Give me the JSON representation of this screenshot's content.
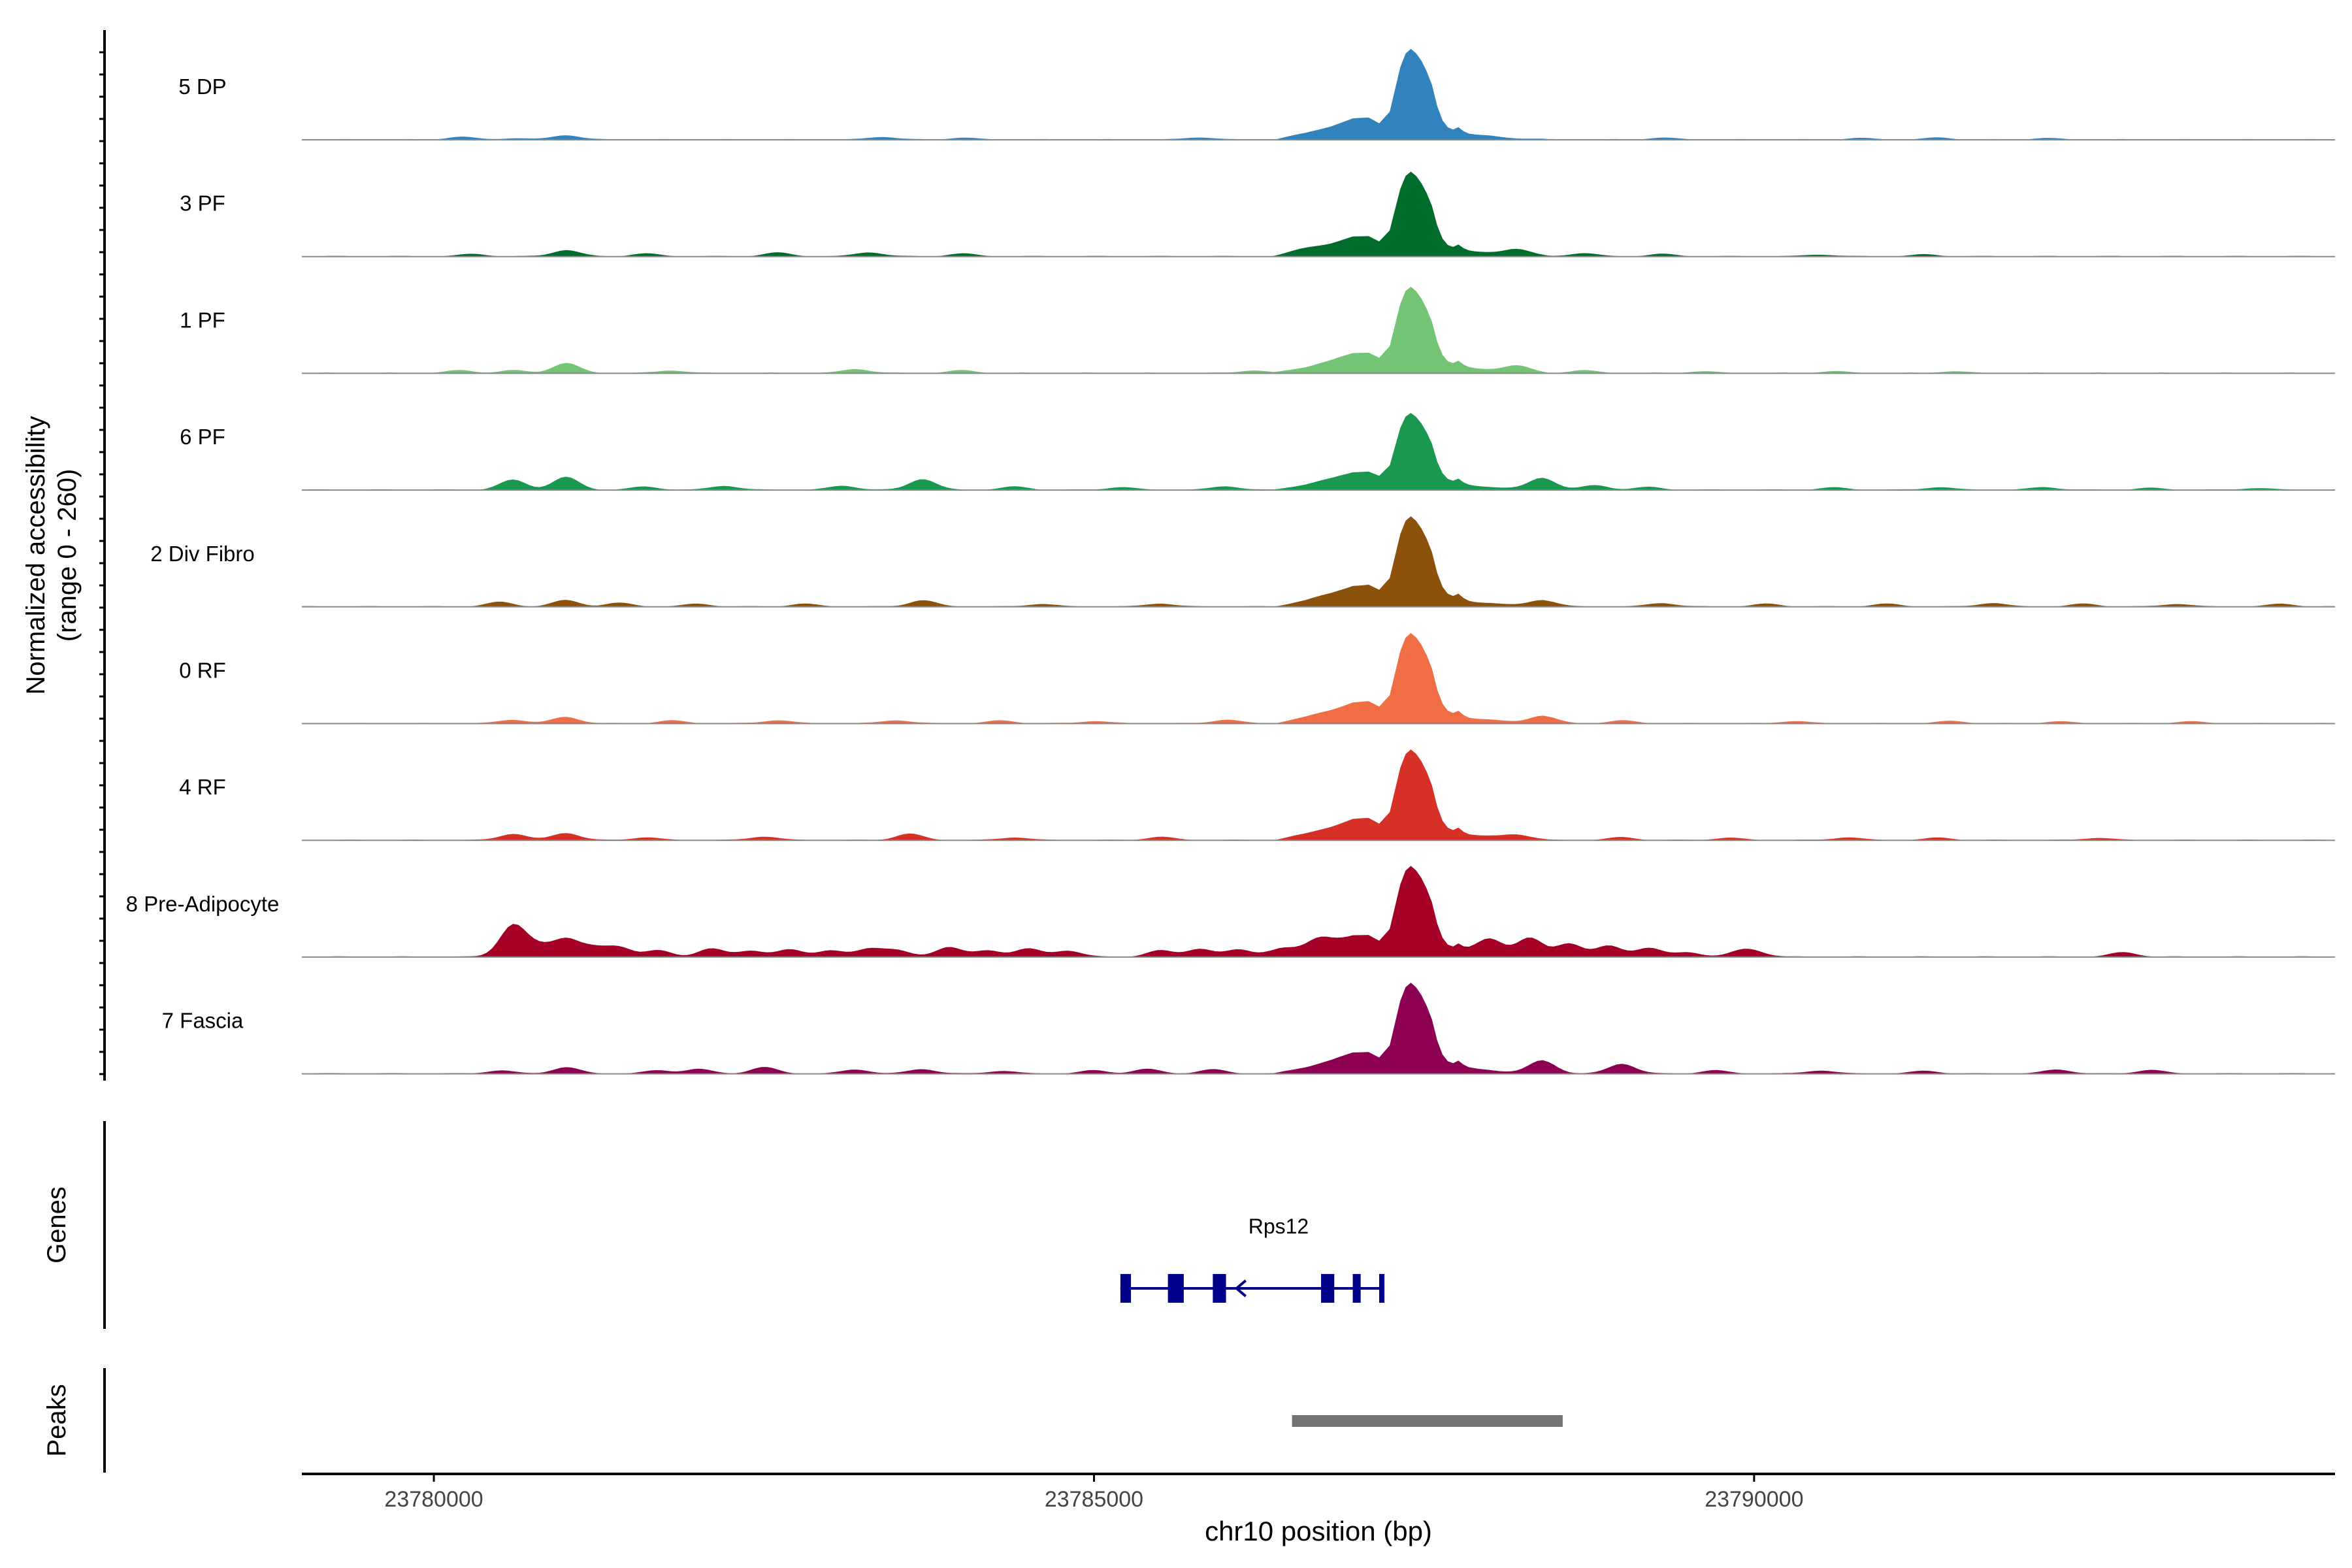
{
  "chart_data": {
    "type": "area",
    "chromosome": "chr10",
    "xlabel": "chr10 position (bp)",
    "ylabel_line1": "Normalized accessibility",
    "ylabel_line2": "(range 0 - 260)",
    "ylim": [
      0,
      260
    ],
    "xlim": [
      23779000,
      23794400
    ],
    "x_ticks": [
      23780000,
      23785000,
      23790000
    ],
    "x_tick_labels": [
      "23780000",
      "23785000",
      "23790000"
    ],
    "track_labels": {
      "genes": "Genes",
      "peaks": "Peaks"
    },
    "series": [
      {
        "name": "5 DP",
        "color": "#3182bd",
        "amp": 1.0,
        "bg": [
          [
            23780200,
            6
          ],
          [
            23780600,
            3
          ],
          [
            23781000,
            10
          ],
          [
            23783400,
            6
          ],
          [
            23784000,
            4
          ],
          [
            23785800,
            5
          ],
          [
            23789300,
            4
          ],
          [
            23790800,
            3
          ],
          [
            23791400,
            4
          ],
          [
            23792200,
            3
          ]
        ]
      },
      {
        "name": "3 PF",
        "color": "#006d2c",
        "amp": 0.93,
        "bg": [
          [
            23780300,
            5
          ],
          [
            23781000,
            14
          ],
          [
            23781600,
            6
          ],
          [
            23782600,
            8
          ],
          [
            23783300,
            9
          ],
          [
            23784000,
            6
          ],
          [
            23786600,
            6
          ],
          [
            23788200,
            14
          ],
          [
            23788700,
            7
          ],
          [
            23789300,
            5
          ],
          [
            23790500,
            4
          ],
          [
            23791300,
            4
          ]
        ]
      },
      {
        "name": "1 PF",
        "color": "#74c476",
        "amp": 0.95,
        "bg": [
          [
            23780200,
            6
          ],
          [
            23780600,
            6
          ],
          [
            23781000,
            22
          ],
          [
            23781800,
            6
          ],
          [
            23783200,
            9
          ],
          [
            23784000,
            6
          ],
          [
            23786200,
            6
          ],
          [
            23788200,
            14
          ],
          [
            23788700,
            6
          ],
          [
            23789600,
            4
          ],
          [
            23790600,
            4
          ],
          [
            23791500,
            4
          ]
        ]
      },
      {
        "name": "6 PF",
        "color": "#1a9850",
        "amp": 0.85,
        "bg": [
          [
            23780600,
            22
          ],
          [
            23781000,
            28
          ],
          [
            23781600,
            7
          ],
          [
            23782200,
            9
          ],
          [
            23783100,
            9
          ],
          [
            23783700,
            24
          ],
          [
            23784400,
            7
          ],
          [
            23785200,
            6
          ],
          [
            23786000,
            8
          ],
          [
            23788400,
            26
          ],
          [
            23788800,
            10
          ],
          [
            23789200,
            6
          ],
          [
            23790600,
            5
          ],
          [
            23791400,
            6
          ],
          [
            23792200,
            6
          ],
          [
            23793000,
            4
          ],
          [
            23793800,
            4
          ]
        ]
      },
      {
        "name": "2 Div Fibro",
        "color": "#8c510a",
        "amp": 1.0,
        "bg": [
          [
            23780500,
            10
          ],
          [
            23781000,
            14
          ],
          [
            23781400,
            8
          ],
          [
            23782000,
            6
          ],
          [
            23782800,
            6
          ],
          [
            23783700,
            14
          ],
          [
            23784600,
            6
          ],
          [
            23785500,
            7
          ],
          [
            23788400,
            14
          ],
          [
            23789300,
            8
          ],
          [
            23790100,
            6
          ],
          [
            23791000,
            6
          ],
          [
            23791800,
            8
          ],
          [
            23792500,
            6
          ],
          [
            23793200,
            6
          ],
          [
            23794000,
            6
          ]
        ]
      },
      {
        "name": "0 RF",
        "color": "#f16d43",
        "amp": 1.0,
        "bg": [
          [
            23780600,
            8
          ],
          [
            23781000,
            14
          ],
          [
            23781800,
            6
          ],
          [
            23782600,
            7
          ],
          [
            23783500,
            7
          ],
          [
            23784300,
            6
          ],
          [
            23785000,
            5
          ],
          [
            23786000,
            8
          ],
          [
            23788400,
            16
          ],
          [
            23789000,
            6
          ],
          [
            23790300,
            5
          ],
          [
            23791500,
            5
          ],
          [
            23792300,
            4
          ],
          [
            23793300,
            4
          ]
        ]
      },
      {
        "name": "4 RF",
        "color": "#d73027",
        "amp": 1.0,
        "bg": [
          [
            23780600,
            14
          ],
          [
            23781000,
            16
          ],
          [
            23781600,
            6
          ],
          [
            23782500,
            8
          ],
          [
            23783600,
            14
          ],
          [
            23784400,
            6
          ],
          [
            23785500,
            7
          ],
          [
            23788200,
            10
          ],
          [
            23789000,
            6
          ],
          [
            23789800,
            5
          ],
          [
            23790700,
            6
          ],
          [
            23791400,
            5
          ],
          [
            23792600,
            5
          ]
        ]
      },
      {
        "name": "8 Pre-Adipocyte",
        "color": "#a50026",
        "amp": 1.0,
        "bg": [
          [
            23780600,
            70
          ],
          [
            23780800,
            20
          ],
          [
            23781000,
            38
          ],
          [
            23781200,
            18
          ],
          [
            23781400,
            22
          ],
          [
            23781700,
            14
          ],
          [
            23782100,
            18
          ],
          [
            23782400,
            14
          ],
          [
            23782700,
            16
          ],
          [
            23783000,
            14
          ],
          [
            23783300,
            18
          ],
          [
            23783500,
            14
          ],
          [
            23783900,
            22
          ],
          [
            23784200,
            14
          ],
          [
            23784500,
            18
          ],
          [
            23784800,
            14
          ],
          [
            23785500,
            14
          ],
          [
            23785800,
            18
          ],
          [
            23786100,
            16
          ],
          [
            23786400,
            16
          ],
          [
            23786700,
            22
          ],
          [
            23788000,
            32
          ],
          [
            23788300,
            40
          ],
          [
            23788600,
            30
          ],
          [
            23788900,
            24
          ],
          [
            23789200,
            20
          ],
          [
            23789500,
            10
          ],
          [
            23789900,
            10
          ],
          [
            23790000,
            10
          ],
          [
            23792800,
            10
          ]
        ]
      },
      {
        "name": "7 Fascia",
        "color": "#8e0152",
        "amp": 1.0,
        "bg": [
          [
            23780500,
            7
          ],
          [
            23781000,
            14
          ],
          [
            23781700,
            7
          ],
          [
            23782000,
            10
          ],
          [
            23782500,
            14
          ],
          [
            23783200,
            9
          ],
          [
            23783700,
            10
          ],
          [
            23784300,
            6
          ],
          [
            23785000,
            7
          ],
          [
            23785400,
            10
          ],
          [
            23785900,
            9
          ],
          [
            23788400,
            28
          ],
          [
            23789000,
            22
          ],
          [
            23789700,
            7
          ],
          [
            23790500,
            7
          ],
          [
            23791300,
            6
          ],
          [
            23792300,
            9
          ],
          [
            23793000,
            8
          ]
        ]
      }
    ],
    "genes": [
      {
        "name": "Rps12",
        "strand": "-",
        "start": 23785200,
        "end": 23787200,
        "exons": [
          [
            23785200,
            23785280
          ],
          [
            23785560,
            23785680
          ],
          [
            23785900,
            23786000
          ],
          [
            23786720,
            23786820
          ],
          [
            23786960,
            23787020
          ],
          [
            23787160,
            23787200
          ]
        ]
      }
    ],
    "peaks": [
      [
        23786500,
        23788550
      ]
    ]
  }
}
